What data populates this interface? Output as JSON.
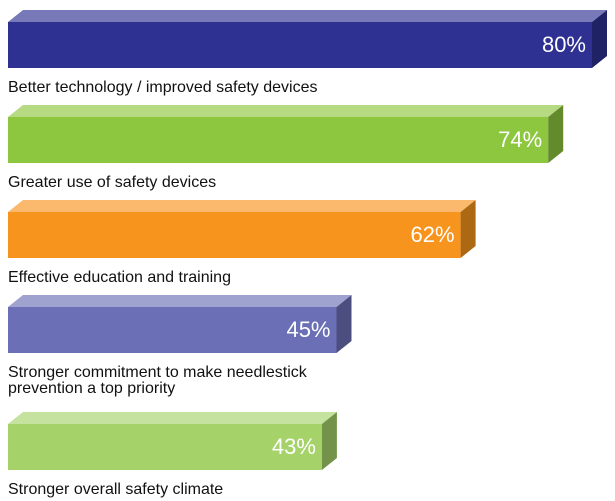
{
  "chart_data": {
    "type": "bar3d",
    "categories": [
      "Better technology / improved safety devices",
      "Greater use of safety devices",
      "Effective education and training",
      "Stronger commitment to make needlestick prevention a top priority",
      "Stronger overall safety climate"
    ],
    "values": [
      80,
      74,
      62,
      45,
      43
    ],
    "value_labels": [
      "80%",
      "74%",
      "62%",
      "45%",
      "43%"
    ],
    "colors": [
      "#2e3192",
      "#8dc63f",
      "#f7941d",
      "#6b6fb5",
      "#a6d26a"
    ]
  }
}
